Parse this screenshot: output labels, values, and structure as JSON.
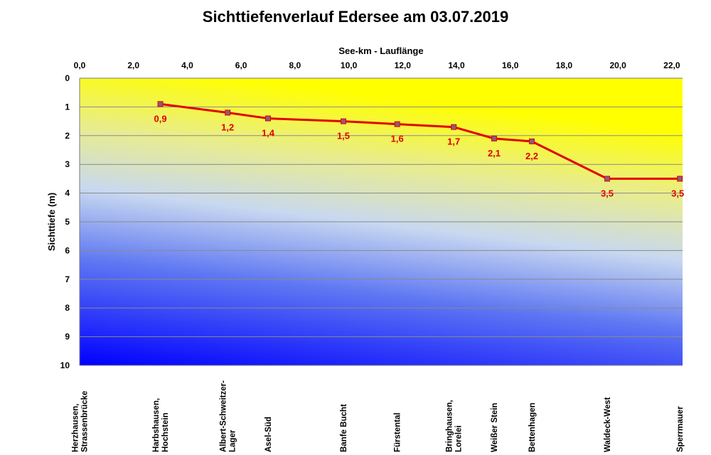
{
  "chart_data": {
    "type": "line",
    "title": "Sichttiefenverlauf Edersee am 03.07.2019",
    "xlabel": "See-km - Lauflänge",
    "ylabel": "Sichttiefe (m)",
    "xlim": [
      0,
      22.4
    ],
    "ylim": [
      0,
      10
    ],
    "y_inverted": true,
    "x_axis_position": "top",
    "grid": "horizontal",
    "x_ticks": [
      "0,0",
      "2,0",
      "4,0",
      "6,0",
      "8,0",
      "10,0",
      "12,0",
      "14,0",
      "16,0",
      "18,0",
      "20,0",
      "22,0"
    ],
    "y_ticks": [
      "0",
      "1",
      "2",
      "3",
      "4",
      "5",
      "6",
      "7",
      "8",
      "9",
      "10"
    ],
    "series": [
      {
        "color": "#e00000",
        "marker_color": "#8a5c78",
        "points": [
          {
            "x": 3.0,
            "y": 0.9,
            "label": "0,9"
          },
          {
            "x": 5.5,
            "y": 1.2,
            "label": "1,2"
          },
          {
            "x": 7.0,
            "y": 1.4,
            "label": "1,4"
          },
          {
            "x": 9.8,
            "y": 1.5,
            "label": "1,5"
          },
          {
            "x": 11.8,
            "y": 1.6,
            "label": "1,6"
          },
          {
            "x": 13.9,
            "y": 1.7,
            "label": "1,7"
          },
          {
            "x": 15.4,
            "y": 2.1,
            "label": "2,1"
          },
          {
            "x": 16.8,
            "y": 2.2,
            "label": "2,2"
          },
          {
            "x": 19.6,
            "y": 3.5,
            "label": "3,5"
          },
          {
            "x": 22.3,
            "y": 3.5,
            "label": "3,5"
          }
        ]
      }
    ],
    "locations": [
      {
        "x": 0.0,
        "lines": [
          "Herzhausen,",
          "Strassenbrücke"
        ]
      },
      {
        "x": 3.0,
        "lines": [
          "Harbshausen,",
          "Hochstein"
        ]
      },
      {
        "x": 5.5,
        "lines": [
          "Albert-Schweitzer-",
          "Lager"
        ]
      },
      {
        "x": 7.0,
        "lines": [
          "Asel-Süd"
        ]
      },
      {
        "x": 9.8,
        "lines": [
          "Banfe Bucht"
        ]
      },
      {
        "x": 11.8,
        "lines": [
          "Fürstental"
        ]
      },
      {
        "x": 13.9,
        "lines": [
          "Bringhausen,",
          "Lorelei"
        ]
      },
      {
        "x": 15.4,
        "lines": [
          "Weißer Stein"
        ]
      },
      {
        "x": 16.8,
        "lines": [
          "Bettenhagen"
        ]
      },
      {
        "x": 19.6,
        "lines": [
          "Waldeck-West"
        ]
      },
      {
        "x": 22.3,
        "lines": [
          "Sperrmauer"
        ]
      }
    ],
    "background_colors": {
      "top": "#ffff00",
      "mid": "#c8d8f0",
      "bottom": "#0000ff"
    }
  }
}
